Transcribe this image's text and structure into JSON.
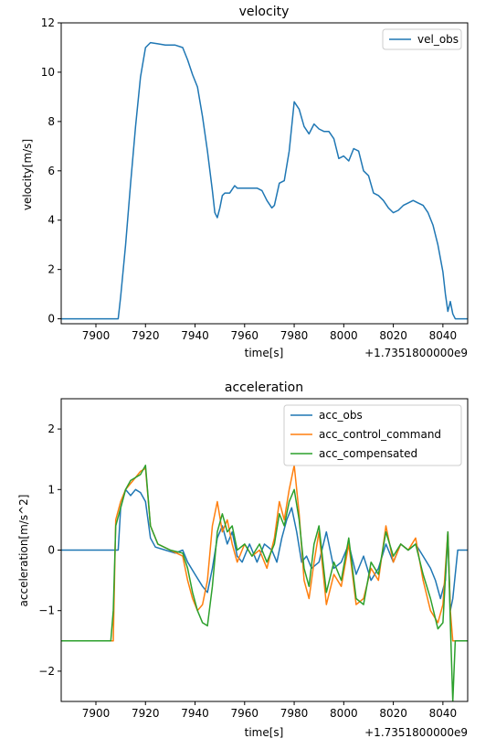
{
  "chart_data": [
    {
      "type": "line",
      "title": "velocity",
      "xlabel": "time[s]",
      "ylabel": "velocity[m/s]",
      "offset_label": "+1.7351800000e9",
      "xlim": [
        7886,
        8050
      ],
      "ylim": [
        -0.2,
        12
      ],
      "xticks": [
        7900,
        7920,
        7940,
        7960,
        7980,
        8000,
        8020,
        8040
      ],
      "yticks": [
        0,
        2,
        4,
        6,
        8,
        10,
        12
      ],
      "grid": false,
      "legend_position": "top-right",
      "series": [
        {
          "name": "vel_obs",
          "color": "#1f77b4",
          "x": [
            7886,
            7909,
            7910,
            7912,
            7914,
            7916,
            7918,
            7920,
            7922,
            7925,
            7928,
            7932,
            7935,
            7937,
            7939,
            7941,
            7943,
            7945,
            7947,
            7948,
            7949,
            7950,
            7951,
            7952,
            7954,
            7956,
            7957,
            7959,
            7961,
            7963,
            7965,
            7967,
            7969,
            7971,
            7972,
            7974,
            7976,
            7978,
            7980,
            7982,
            7984,
            7986,
            7988,
            7990,
            7992,
            7994,
            7996,
            7998,
            8000,
            8002,
            8004,
            8006,
            8008,
            8010,
            8012,
            8014,
            8016,
            8018,
            8020,
            8022,
            8024,
            8026,
            8028,
            8030,
            8032,
            8034,
            8036,
            8038,
            8040,
            8041,
            8042,
            8043,
            8044,
            8045,
            8046,
            8050
          ],
          "y": [
            0.0,
            0.0,
            0.9,
            3.0,
            5.5,
            7.8,
            9.8,
            11.0,
            11.2,
            11.15,
            11.1,
            11.1,
            11.0,
            10.5,
            9.9,
            9.4,
            8.2,
            6.8,
            5.2,
            4.3,
            4.1,
            4.5,
            5.0,
            5.1,
            5.1,
            5.4,
            5.3,
            5.3,
            5.3,
            5.3,
            5.3,
            5.2,
            4.8,
            4.5,
            4.6,
            5.5,
            5.6,
            6.8,
            8.8,
            8.5,
            7.8,
            7.5,
            7.9,
            7.7,
            7.6,
            7.6,
            7.3,
            6.5,
            6.6,
            6.4,
            6.9,
            6.8,
            6.0,
            5.8,
            5.1,
            5.0,
            4.8,
            4.5,
            4.3,
            4.4,
            4.6,
            4.7,
            4.8,
            4.7,
            4.6,
            4.3,
            3.8,
            3.0,
            1.9,
            1.0,
            0.3,
            0.7,
            0.2,
            0.0,
            0.0,
            0.0
          ]
        }
      ]
    },
    {
      "type": "line",
      "title": "acceleration",
      "xlabel": "time[s]",
      "ylabel": "acceleration[m/s^2]",
      "offset_label": "+1.7351800000e9",
      "xlim": [
        7886,
        8050
      ],
      "ylim": [
        -2.5,
        2.5
      ],
      "xticks": [
        7900,
        7920,
        7940,
        7960,
        7980,
        8000,
        8020,
        8040
      ],
      "yticks": [
        -2,
        -1,
        0,
        1,
        2
      ],
      "grid": false,
      "legend_position": "top-right",
      "series": [
        {
          "name": "acc_obs",
          "color": "#1f77b4",
          "x": [
            7886,
            7909,
            7910,
            7912,
            7914,
            7916,
            7918,
            7920,
            7922,
            7924,
            7928,
            7932,
            7935,
            7937,
            7940,
            7943,
            7945,
            7947,
            7949,
            7951,
            7953,
            7955,
            7957,
            7959,
            7962,
            7965,
            7968,
            7971,
            7973,
            7975,
            7977,
            7979,
            7981,
            7983,
            7985,
            7987,
            7990,
            7993,
            7996,
            7999,
            8002,
            8005,
            8008,
            8011,
            8014,
            8017,
            8020,
            8023,
            8026,
            8029,
            8032,
            8035,
            8037,
            8039,
            8041,
            8042,
            8043,
            8044,
            8046,
            8050
          ],
          "y": [
            0.0,
            0.0,
            0.7,
            1.0,
            0.9,
            1.0,
            0.95,
            0.8,
            0.2,
            0.05,
            0.0,
            -0.05,
            0.0,
            -0.2,
            -0.4,
            -0.6,
            -0.7,
            -0.3,
            0.2,
            0.4,
            0.1,
            0.3,
            -0.1,
            -0.2,
            0.1,
            -0.2,
            0.1,
            0.0,
            -0.2,
            0.2,
            0.5,
            0.7,
            0.3,
            -0.2,
            -0.1,
            -0.3,
            -0.2,
            0.3,
            -0.3,
            -0.2,
            0.1,
            -0.4,
            -0.1,
            -0.5,
            -0.3,
            0.1,
            -0.2,
            0.1,
            0.0,
            0.1,
            -0.1,
            -0.3,
            -0.5,
            -0.8,
            -0.5,
            0.3,
            -1.0,
            -0.8,
            0.0,
            0.0
          ]
        },
        {
          "name": "acc_control_command",
          "color": "#ff7f0e",
          "x": [
            7886,
            7907,
            7908,
            7910,
            7912,
            7914,
            7916,
            7918,
            7920,
            7922,
            7925,
            7930,
            7935,
            7937,
            7939,
            7941,
            7943,
            7945,
            7947,
            7949,
            7951,
            7953,
            7955,
            7957,
            7960,
            7963,
            7966,
            7969,
            7972,
            7974,
            7976,
            7978,
            7980,
            7982,
            7984,
            7986,
            7988,
            7990,
            7993,
            7996,
            7999,
            8002,
            8005,
            8008,
            8011,
            8014,
            8017,
            8020,
            8023,
            8026,
            8029,
            8032,
            8035,
            8038,
            8040,
            8042,
            8043,
            8044,
            8046,
            8050
          ],
          "y": [
            -1.5,
            -1.5,
            0.5,
            0.8,
            1.0,
            1.1,
            1.2,
            1.3,
            1.35,
            0.4,
            0.1,
            0.0,
            -0.1,
            -0.5,
            -0.8,
            -1.0,
            -0.9,
            -0.5,
            0.4,
            0.8,
            0.3,
            0.5,
            0.1,
            -0.2,
            0.1,
            -0.1,
            0.0,
            -0.3,
            0.2,
            0.8,
            0.5,
            1.0,
            1.4,
            0.6,
            -0.5,
            -0.8,
            -0.2,
            0.3,
            -0.9,
            -0.4,
            -0.6,
            0.1,
            -0.9,
            -0.8,
            -0.3,
            -0.5,
            0.4,
            -0.2,
            0.1,
            0.0,
            0.2,
            -0.5,
            -1.0,
            -1.2,
            -0.9,
            0.3,
            -1.0,
            -1.5,
            -1.5,
            -1.5
          ]
        },
        {
          "name": "acc_compensated",
          "color": "#2ca02c",
          "x": [
            7886,
            7906,
            7907,
            7908,
            7910,
            7912,
            7914,
            7916,
            7918,
            7920,
            7922,
            7925,
            7930,
            7935,
            7937,
            7939,
            7941,
            7943,
            7945,
            7947,
            7949,
            7951,
            7953,
            7955,
            7957,
            7960,
            7963,
            7966,
            7969,
            7972,
            7974,
            7976,
            7978,
            7980,
            7982,
            7984,
            7986,
            7988,
            7990,
            7993,
            7996,
            7999,
            8002,
            8005,
            8008,
            8011,
            8014,
            8017,
            8020,
            8023,
            8026,
            8029,
            8032,
            8035,
            8038,
            8040,
            8042,
            8043,
            8044,
            8045,
            8050
          ],
          "y": [
            -1.5,
            -1.5,
            -1.0,
            0.4,
            0.7,
            1.0,
            1.15,
            1.2,
            1.25,
            1.4,
            0.4,
            0.1,
            0.0,
            -0.05,
            -0.3,
            -0.7,
            -1.0,
            -1.2,
            -1.25,
            -0.6,
            0.3,
            0.6,
            0.3,
            0.4,
            0.0,
            0.1,
            -0.1,
            0.1,
            -0.2,
            0.1,
            0.6,
            0.4,
            0.8,
            1.0,
            0.5,
            -0.3,
            -0.6,
            0.1,
            0.4,
            -0.7,
            -0.2,
            -0.5,
            0.2,
            -0.8,
            -0.9,
            -0.2,
            -0.4,
            0.3,
            -0.1,
            0.1,
            0.0,
            0.1,
            -0.4,
            -0.8,
            -1.3,
            -1.2,
            0.3,
            -1.2,
            -2.5,
            -1.5,
            -1.5
          ]
        }
      ]
    }
  ]
}
